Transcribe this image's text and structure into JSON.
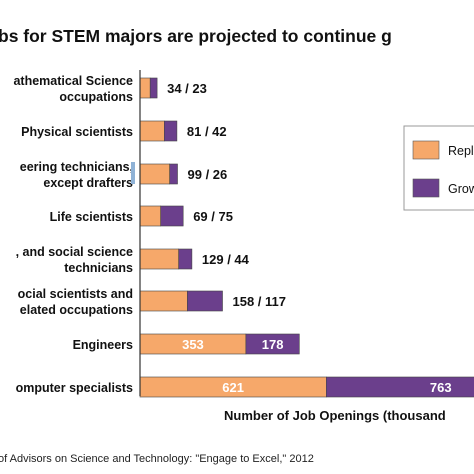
{
  "chart_data": {
    "type": "bar",
    "orientation": "horizontal",
    "stacked": true,
    "title": "bs for STEM majors are projected to continue g",
    "xlabel": "Number of Job Openings (thousand",
    "ylabel": "",
    "categories": [
      [
        "athematical Science",
        "occupations"
      ],
      [
        "Physical scientists"
      ],
      [
        "eering technicians,",
        "except drafters"
      ],
      [
        "Life scientists"
      ],
      [
        ", and social science",
        "technicians"
      ],
      [
        "ocial scientists and",
        "elated occupations"
      ],
      [
        "Engineers"
      ],
      [
        "omputer specialists"
      ]
    ],
    "series": [
      {
        "name": "Repl",
        "color": "#f6a86a",
        "values": [
          34,
          81,
          99,
          69,
          129,
          158,
          353,
          621
        ]
      },
      {
        "name": "Grow",
        "color": "#6b3f8c",
        "values": [
          23,
          42,
          26,
          75,
          44,
          117,
          178,
          763
        ]
      }
    ],
    "value_labels": [
      "34 / 23",
      "81 / 42",
      "99 / 26",
      "69 / 75",
      "129 / 44",
      "158 / 117",
      "",
      ""
    ],
    "inbar_labels": [
      [
        "",
        ""
      ],
      [
        "",
        ""
      ],
      [
        "",
        ""
      ],
      [
        "",
        ""
      ],
      [
        "",
        ""
      ],
      [
        "",
        ""
      ],
      [
        "353",
        "178"
      ],
      [
        "621",
        "763"
      ]
    ],
    "xlim": [
      0,
      1400
    ],
    "grid": false,
    "legend": "right"
  },
  "source": "of Advisors on Science and Technology: \"Engage to Excel,\" 2012",
  "colors": {
    "accent_bar": "#8fb2d6",
    "axis": "#333333"
  }
}
